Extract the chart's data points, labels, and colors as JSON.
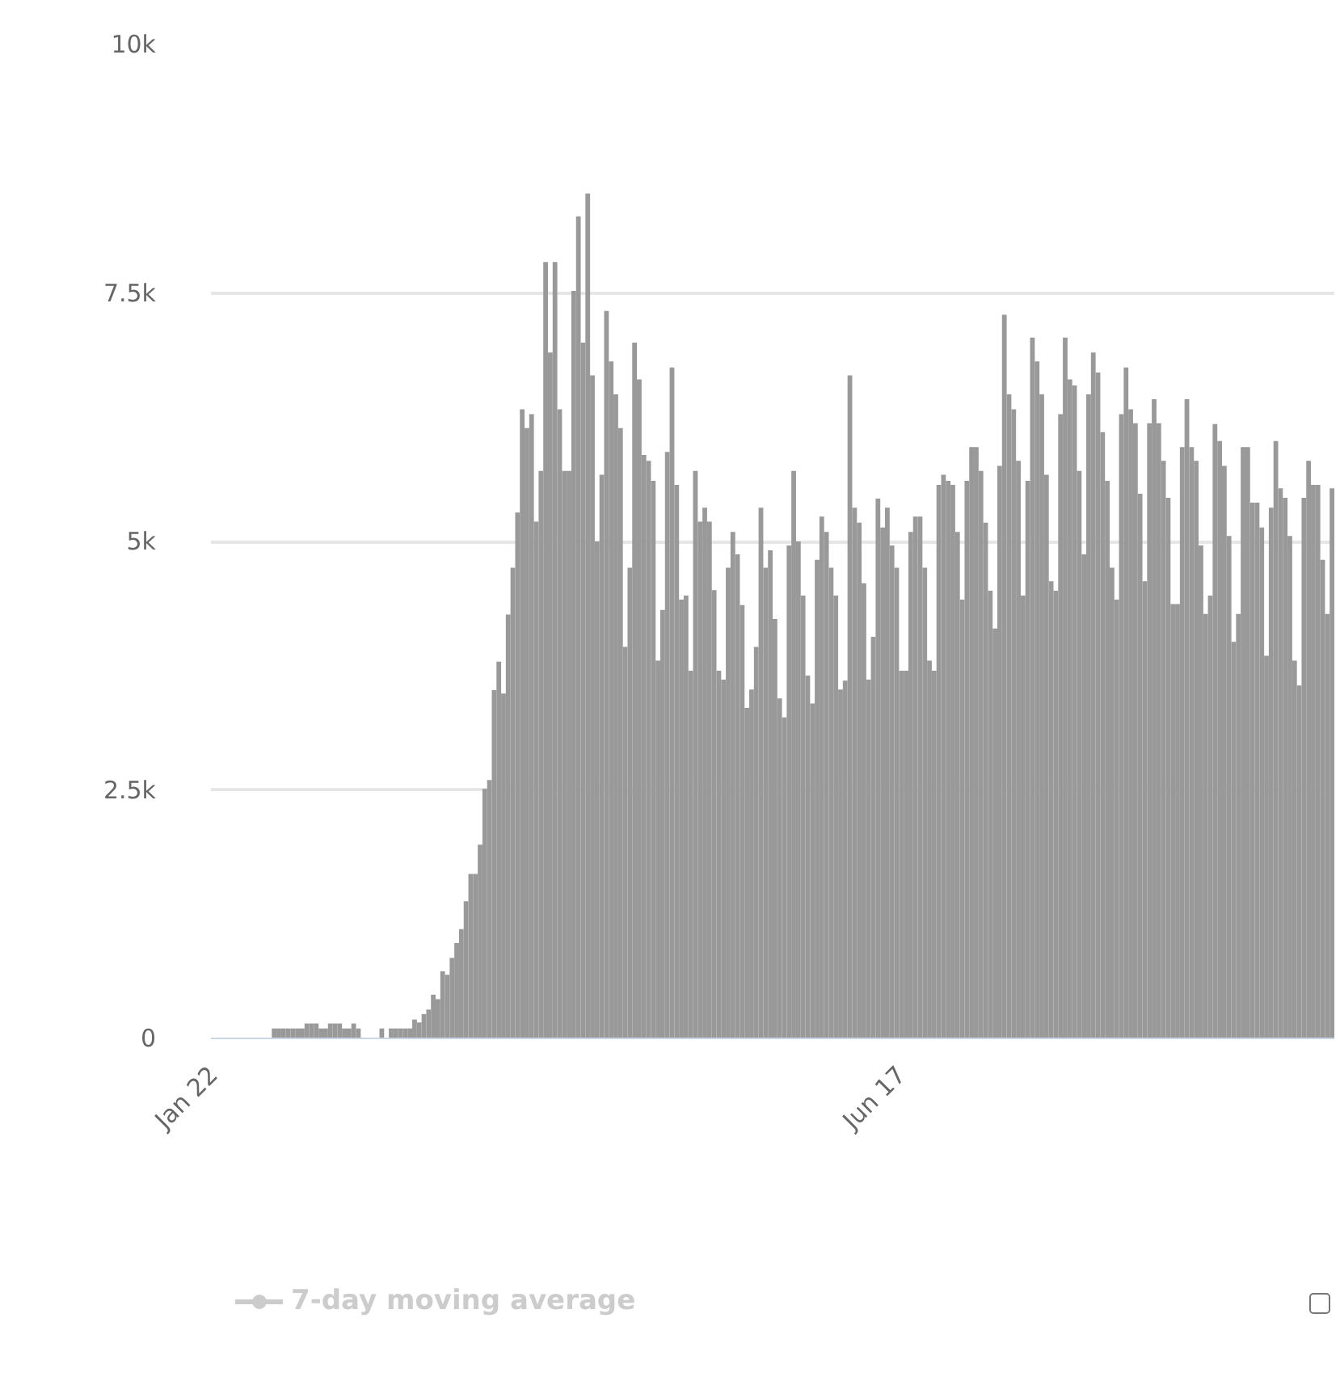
{
  "chart_data": {
    "type": "bar",
    "categories": [
      "Jan 22",
      null,
      null,
      null,
      null,
      null,
      null,
      null,
      null,
      null,
      null,
      null,
      null,
      null,
      null,
      null,
      null,
      null,
      null,
      null,
      null,
      null,
      null,
      null,
      null,
      null,
      null,
      null,
      null,
      null,
      null,
      null,
      null,
      null,
      null,
      null,
      null,
      null,
      null,
      null,
      null,
      null,
      null,
      null,
      null,
      null,
      null,
      null,
      null,
      null,
      null,
      null,
      null,
      null,
      null,
      null,
      null,
      null,
      null,
      null,
      null,
      null,
      null,
      null,
      null,
      null,
      null,
      null,
      null,
      null,
      null,
      null,
      null,
      null,
      null,
      null,
      null,
      null,
      null,
      null,
      null,
      null,
      null,
      null,
      null,
      null,
      null,
      null,
      null,
      null,
      null,
      null,
      null,
      null,
      null,
      null,
      null,
      null,
      null,
      null,
      null,
      null,
      null,
      null,
      null,
      null,
      null,
      null,
      null,
      null,
      null,
      null,
      null,
      null,
      null,
      null,
      null,
      null,
      null,
      null,
      null,
      null,
      null,
      null,
      null,
      null,
      null,
      null,
      null,
      null,
      null,
      null,
      null,
      null,
      null,
      null,
      null,
      null,
      null,
      null,
      null,
      null,
      null,
      null,
      null,
      null,
      null,
      "Jun 17",
      null,
      null,
      null,
      null,
      null,
      null,
      null,
      null,
      null,
      null,
      null,
      null,
      null,
      null,
      null,
      null,
      null,
      null,
      null,
      null,
      null,
      null,
      null,
      null,
      null,
      null,
      null,
      null,
      null,
      null,
      null,
      null,
      null,
      null,
      null,
      null,
      null,
      null,
      null,
      null,
      null,
      null,
      null,
      null,
      null,
      null,
      null,
      null,
      null,
      null,
      null,
      null,
      null,
      null,
      null,
      null,
      null,
      null,
      null,
      null,
      null,
      null,
      null,
      null,
      null,
      null,
      null,
      null,
      null,
      null,
      null,
      null,
      null,
      null,
      null,
      null,
      null,
      null,
      null,
      null,
      null,
      null,
      null,
      null,
      null,
      null,
      null,
      null,
      null,
      null,
      null,
      null
    ],
    "series": [
      {
        "color": "#999999",
        "values": [
          0,
          0,
          0,
          0,
          0,
          0,
          0,
          0,
          0,
          0,
          0,
          0,
          0,
          100,
          100,
          100,
          100,
          100,
          100,
          100,
          150,
          150,
          150,
          100,
          100,
          150,
          150,
          150,
          100,
          100,
          150,
          100,
          0,
          0,
          0,
          0,
          100,
          0,
          100,
          100,
          100,
          100,
          100,
          190,
          160,
          245,
          290,
          440,
          395,
          675,
          640,
          810,
          960,
          1100,
          1380,
          1655,
          1655,
          1950,
          2510,
          2600,
          3505,
          3790,
          3470,
          4265,
          4735,
          5290,
          6330,
          6140,
          6280,
          5200,
          5710,
          7810,
          6900,
          7810,
          6330,
          5710,
          5710,
          7520,
          8270,
          7000,
          8500,
          6670,
          5000,
          5670,
          7320,
          6810,
          6480,
          6140,
          3940,
          4735,
          7000,
          6630,
          5870,
          5810,
          5610,
          3800,
          4310,
          5900,
          6750,
          5570,
          4415,
          4455,
          3700,
          5710,
          5200,
          5340,
          5200,
          4510,
          3700,
          3610,
          4735,
          5095,
          4870,
          4360,
          3325,
          3510,
          3940,
          5340,
          4735,
          4910,
          4220,
          3420,
          3230,
          4960,
          5710,
          5000,
          4455,
          3650,
          3370,
          4815,
          5250,
          5095,
          4735,
          4455,
          3510,
          3600,
          6670,
          5340,
          5190,
          4580,
          3610,
          4040,
          5430,
          5140,
          5340,
          4960,
          4735,
          3700,
          3700,
          5095,
          5250,
          5250,
          4735,
          3800,
          3700,
          5570,
          5670,
          5610,
          5570,
          5095,
          4415,
          5610,
          5950,
          5950,
          5710,
          5190,
          4505,
          4125,
          5760,
          7280,
          6480,
          6330,
          5810,
          4455,
          5610,
          7050,
          6810,
          6480,
          5670,
          4600,
          4505,
          6280,
          7050,
          6630,
          6570,
          5710,
          4870,
          6480,
          6900,
          6700,
          6100,
          5610,
          4735,
          4415,
          6280,
          6750,
          6330,
          6190,
          5480,
          4600,
          6190,
          6430,
          6190,
          5810,
          5440,
          4370,
          4370,
          5950,
          6430,
          5950,
          5810,
          4960,
          4270,
          4455,
          6180,
          6010,
          5760,
          5055,
          3990,
          4270,
          5950,
          5950,
          5390,
          5390,
          5140,
          3850,
          5340,
          6010,
          5535,
          5440,
          5055,
          3800,
          3550,
          5440,
          5810,
          5570,
          5570,
          4815,
          4270,
          5535
        ]
      },
      {
        "type": "line",
        "name": "7-day moving average",
        "color": "#cccccc",
        "marker": "circle",
        "values": [
          null,
          null,
          null,
          null,
          null,
          null,
          null,
          null,
          null,
          null,
          null,
          null,
          null,
          null,
          null,
          null,
          null,
          null,
          null,
          null,
          null,
          null,
          null,
          null,
          null,
          null,
          null,
          null,
          null,
          null,
          null,
          null,
          null,
          null,
          null,
          null,
          null,
          null,
          null,
          null,
          null,
          null,
          null,
          null,
          null,
          null,
          null,
          null,
          null,
          null,
          null,
          null,
          null,
          null,
          null,
          null,
          null,
          null,
          null,
          null,
          null,
          null,
          null,
          null,
          null,
          null,
          null,
          null,
          null,
          null,
          null,
          null,
          null,
          null,
          null,
          null,
          null,
          null,
          null,
          null,
          null,
          null,
          null,
          null,
          null,
          null,
          null,
          null,
          null,
          null,
          null,
          null,
          null,
          null,
          null,
          null,
          null,
          null,
          null,
          null,
          null,
          null,
          null,
          null,
          null,
          null,
          null,
          null,
          null,
          null,
          null,
          null,
          null,
          null,
          null,
          null,
          null,
          null,
          null,
          null,
          null,
          null,
          null,
          null,
          null,
          null,
          null,
          null,
          null,
          null,
          null,
          null,
          null,
          null,
          null,
          null,
          null,
          null,
          null,
          null,
          null,
          null,
          null,
          null,
          null,
          null,
          null,
          null,
          null,
          null,
          null,
          null,
          null,
          null,
          null,
          null,
          null,
          null,
          null,
          null,
          null,
          null,
          null,
          null,
          null,
          null,
          null,
          null,
          null,
          null,
          null,
          null,
          null,
          null,
          null,
          null,
          null,
          null,
          null,
          null,
          null,
          null,
          null,
          null,
          null,
          null,
          null,
          null,
          null,
          null,
          null,
          null,
          null,
          null,
          null,
          null,
          null,
          null,
          null,
          null,
          null,
          null,
          null,
          null,
          null,
          null,
          null,
          null,
          null,
          null,
          null,
          null,
          null,
          null,
          null,
          null,
          null,
          null,
          null,
          null,
          null,
          null,
          null,
          null,
          null,
          null,
          null,
          null,
          null,
          null,
          null,
          null,
          null,
          null,
          null,
          null,
          null,
          null,
          null,
          null
        ]
      }
    ],
    "ylim": [
      0,
      10000
    ],
    "yticks": [
      0,
      {
        "value": 2500,
        "label": "2.5k"
      },
      {
        "value": 5000,
        "label": "5k"
      },
      {
        "value": 7500,
        "label": "7.5k"
      },
      {
        "value": 10000,
        "label": "10k"
      }
    ],
    "grid": "y",
    "legend": "bottom"
  }
}
